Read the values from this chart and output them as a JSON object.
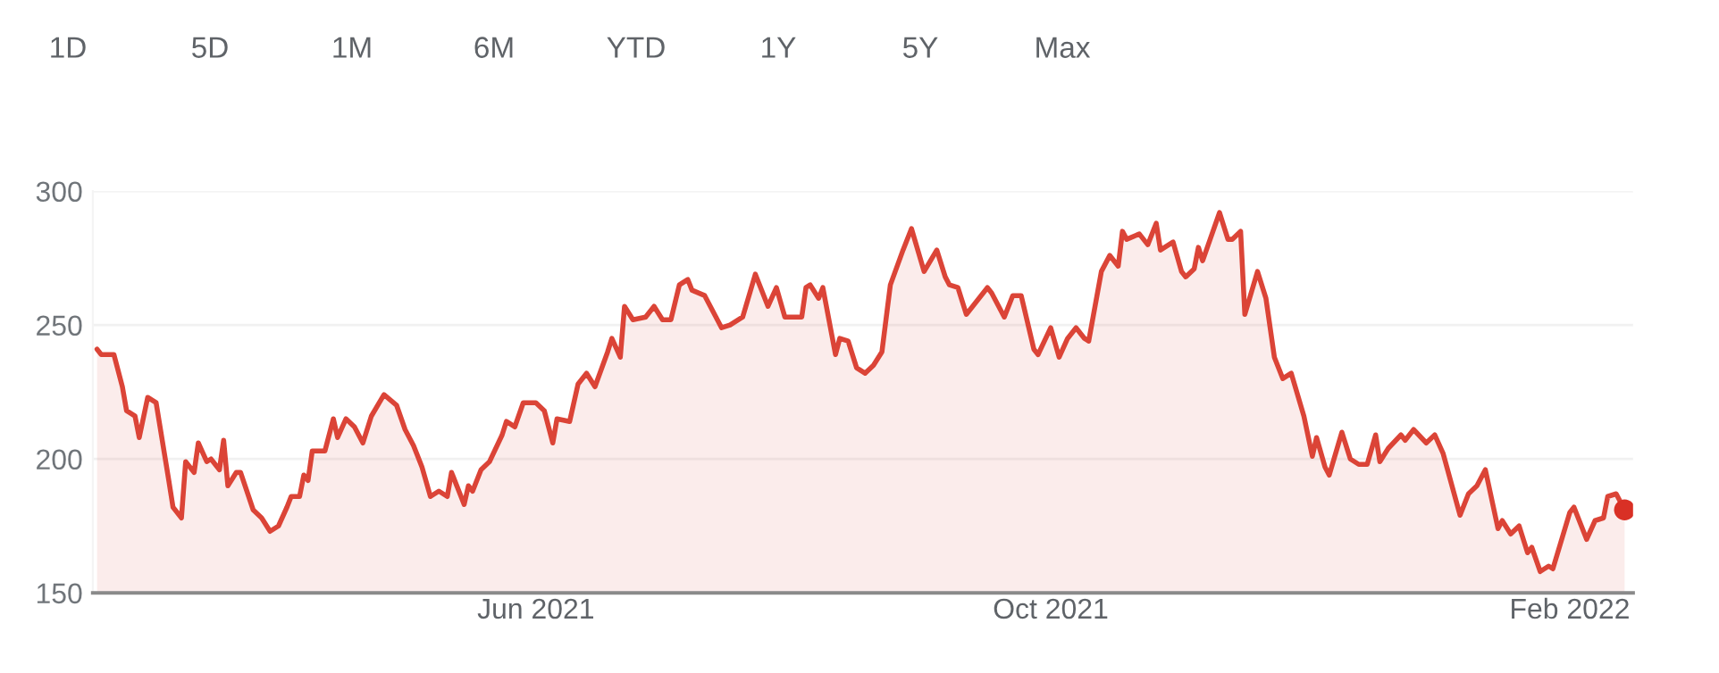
{
  "chart_data": {
    "type": "area",
    "annotations": [
      "1D",
      "5D",
      "1M",
      "6M",
      "YTD",
      "1Y",
      "5Y",
      "Max"
    ],
    "xlim": [
      "2021-02-16",
      "2022-02-16"
    ],
    "xticks": [
      {
        "value": "2021-06-01",
        "label": "Jun 2021"
      },
      {
        "value": "2021-10-01",
        "label": "Oct 2021"
      },
      {
        "value": "2022-02-01",
        "label": "Feb 2022"
      }
    ],
    "ylim": [
      150,
      300
    ],
    "yticks": [
      150,
      200,
      250,
      300
    ],
    "grid": "y",
    "series": [
      {
        "color": "#db4437",
        "x": [
          "2021-02-17",
          "2021-02-18",
          "2021-02-21",
          "2021-02-23",
          "2021-02-24",
          "2021-02-26",
          "2021-02-27",
          "2021-03-01",
          "2021-03-03",
          "2021-03-06",
          "2021-03-07",
          "2021-03-09",
          "2021-03-10",
          "2021-03-12",
          "2021-03-13",
          "2021-03-15",
          "2021-03-16",
          "2021-03-18",
          "2021-03-19",
          "2021-03-20",
          "2021-03-22",
          "2021-03-23",
          "2021-03-26",
          "2021-03-28",
          "2021-03-30",
          "2021-04-01",
          "2021-04-03",
          "2021-04-04",
          "2021-04-06",
          "2021-04-07",
          "2021-04-08",
          "2021-04-09",
          "2021-04-12",
          "2021-04-14",
          "2021-04-15",
          "2021-04-17",
          "2021-04-19",
          "2021-04-21",
          "2021-04-23",
          "2021-04-26",
          "2021-04-29",
          "2021-05-01",
          "2021-05-03",
          "2021-05-05",
          "2021-05-07",
          "2021-05-09",
          "2021-05-11",
          "2021-05-12",
          "2021-05-15",
          "2021-05-16",
          "2021-05-17",
          "2021-05-19",
          "2021-05-21",
          "2021-05-24",
          "2021-05-25",
          "2021-05-27",
          "2021-05-29",
          "2021-06-01",
          "2021-06-03",
          "2021-06-05",
          "2021-06-06",
          "2021-06-09",
          "2021-06-11",
          "2021-06-13",
          "2021-06-15",
          "2021-06-18",
          "2021-06-19",
          "2021-06-21",
          "2021-06-22",
          "2021-06-24",
          "2021-06-27",
          "2021-06-29",
          "2021-07-01",
          "2021-07-03",
          "2021-07-05",
          "2021-07-07",
          "2021-07-08",
          "2021-07-11",
          "2021-07-15",
          "2021-07-17",
          "2021-07-20",
          "2021-07-23",
          "2021-07-26",
          "2021-07-28",
          "2021-07-30",
          "2021-08-03",
          "2021-08-04",
          "2021-08-05",
          "2021-08-07",
          "2021-08-08",
          "2021-08-11",
          "2021-08-12",
          "2021-08-14",
          "2021-08-16",
          "2021-08-18",
          "2021-08-20",
          "2021-08-22",
          "2021-08-24",
          "2021-08-27",
          "2021-08-29",
          "2021-09-01",
          "2021-09-04",
          "2021-09-06",
          "2021-09-07",
          "2021-09-09",
          "2021-09-11",
          "2021-09-16",
          "2021-09-17",
          "2021-09-20",
          "2021-09-22",
          "2021-09-24",
          "2021-09-27",
          "2021-09-28",
          "2021-10-01",
          "2021-10-03",
          "2021-10-05",
          "2021-10-07",
          "2021-10-09",
          "2021-10-10",
          "2021-10-13",
          "2021-10-15",
          "2021-10-17",
          "2021-10-18",
          "2021-10-19",
          "2021-10-22",
          "2021-10-24",
          "2021-10-26",
          "2021-10-27",
          "2021-10-30",
          "2021-11-01",
          "2021-11-02",
          "2021-11-04",
          "2021-11-05",
          "2021-11-06",
          "2021-11-10",
          "2021-11-12",
          "2021-11-13",
          "2021-11-15",
          "2021-11-16",
          "2021-11-19",
          "2021-11-21",
          "2021-11-23",
          "2021-11-25",
          "2021-11-27",
          "2021-11-30",
          "2021-12-02",
          "2021-12-03",
          "2021-12-05",
          "2021-12-06",
          "2021-12-09",
          "2021-12-11",
          "2021-12-13",
          "2021-12-15",
          "2021-12-17",
          "2021-12-18",
          "2021-12-20",
          "2021-12-23",
          "2021-12-24",
          "2021-12-26",
          "2021-12-29",
          "2021-12-31",
          "2022-01-02",
          "2022-01-06",
          "2022-01-08",
          "2022-01-10",
          "2022-01-12",
          "2022-01-15",
          "2022-01-16",
          "2022-01-18",
          "2022-01-20",
          "2022-01-22",
          "2022-01-23",
          "2022-01-25",
          "2022-01-27",
          "2022-01-28",
          "2022-02-01",
          "2022-02-02",
          "2022-02-05",
          "2022-02-07",
          "2022-02-09",
          "2022-02-10",
          "2022-02-12",
          "2022-02-14"
        ],
        "values": [
          241,
          239,
          239,
          227,
          218,
          216,
          208,
          223,
          221,
          192,
          182,
          178,
          199,
          195,
          206,
          199,
          200,
          196,
          207,
          190,
          195,
          195,
          181,
          178,
          173,
          175,
          182,
          186,
          186,
          194,
          192,
          203,
          203,
          215,
          208,
          215,
          212,
          206,
          216,
          224,
          220,
          211,
          205,
          197,
          186,
          188,
          186,
          195,
          183,
          190,
          188,
          196,
          199,
          209,
          214,
          212,
          221,
          221,
          218,
          206,
          215,
          214,
          228,
          232,
          227,
          240,
          245,
          238,
          257,
          252,
          253,
          257,
          252,
          252,
          265,
          267,
          263,
          261,
          249,
          250,
          253,
          269,
          257,
          264,
          253,
          253,
          264,
          265,
          260,
          264,
          239,
          245,
          244,
          234,
          232,
          235,
          240,
          265,
          278,
          286,
          270,
          278,
          268,
          265,
          264,
          254,
          264,
          262,
          253,
          261,
          261,
          241,
          239,
          249,
          238,
          245,
          249,
          245,
          244,
          270,
          276,
          272,
          285,
          282,
          284,
          280,
          288,
          278,
          281,
          270,
          268,
          271,
          279,
          274,
          292,
          282,
          282,
          285,
          254,
          270,
          260,
          238,
          230,
          232,
          216,
          201,
          208,
          197,
          194,
          210,
          200,
          198,
          198,
          209,
          199,
          204,
          209,
          207,
          211,
          206,
          209,
          202,
          179,
          187,
          190,
          196,
          174,
          177,
          172,
          175,
          165,
          167,
          158,
          160,
          159,
          180,
          182,
          170,
          177,
          178,
          186,
          187,
          181
        ]
      },
      {
        "type": "scatter",
        "color": "#d93025",
        "x": [
          "2022-02-14"
        ],
        "values": [
          181
        ]
      }
    ]
  }
}
